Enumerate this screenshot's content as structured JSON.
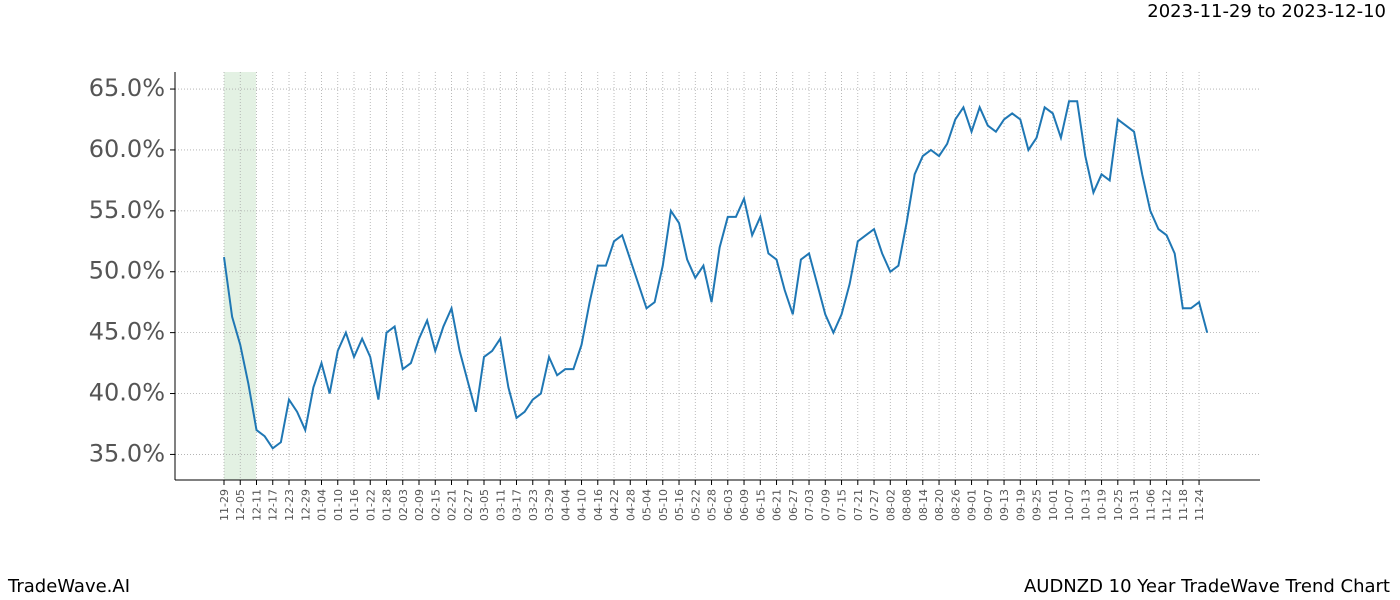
{
  "chart_data": {
    "type": "line",
    "title": "2023-11-29 to 2023-12-10",
    "brand": "TradeWave.AI",
    "caption": "AUDNZD 10 Year TradeWave Trend Chart",
    "categories": [
      "11-29",
      null,
      "12-05",
      null,
      "12-11",
      null,
      "12-17",
      null,
      "12-23",
      null,
      "12-29",
      null,
      "01-04",
      null,
      "01-10",
      null,
      "01-16",
      null,
      "01-22",
      null,
      "01-28",
      null,
      "02-03",
      null,
      "02-09",
      null,
      "02-15",
      null,
      "02-21",
      null,
      "02-27",
      null,
      "03-05",
      null,
      "03-11",
      null,
      "03-17",
      null,
      "03-23",
      null,
      "03-29",
      null,
      "04-04",
      null,
      "04-10",
      null,
      "04-16",
      null,
      "04-22",
      null,
      "04-28",
      null,
      "05-04",
      null,
      "05-10",
      null,
      "05-16",
      null,
      "05-22",
      null,
      "05-28",
      null,
      "06-03",
      null,
      "06-09",
      null,
      "06-15",
      null,
      "06-21",
      null,
      "06-27",
      null,
      "07-03",
      null,
      "07-09",
      null,
      "07-15",
      null,
      "07-21",
      null,
      "07-27",
      null,
      "08-02",
      null,
      "08-08",
      null,
      "08-14",
      null,
      "08-20",
      null,
      "08-26",
      null,
      "09-01",
      null,
      "09-07",
      null,
      "09-13",
      null,
      "09-19",
      null,
      "09-25",
      null,
      "10-01",
      null,
      "10-07",
      null,
      "10-13",
      null,
      "10-19",
      null,
      "10-25",
      null,
      "10-31",
      null,
      "11-06",
      null,
      "11-12",
      null,
      "11-18",
      null,
      "11-24",
      null
    ],
    "series": [
      {
        "color": "#1f77b4",
        "values": [
          51.2,
          46.3,
          44.0,
          40.8,
          37.0,
          36.5,
          35.5,
          36.0,
          39.5,
          38.5,
          37.0,
          40.5,
          42.5,
          40.0,
          43.5,
          45.0,
          43.0,
          44.5,
          43.0,
          39.5,
          45.0,
          45.5,
          42.0,
          42.5,
          44.5,
          46.0,
          43.5,
          45.5,
          47.0,
          43.5,
          41.0,
          38.5,
          43.0,
          43.5,
          44.5,
          40.5,
          38.0,
          38.5,
          39.5,
          40.0,
          43.0,
          41.5,
          42.0,
          42.0,
          44.0,
          47.5,
          50.5,
          50.5,
          52.5,
          53.0,
          51.0,
          49.0,
          47.0,
          47.5,
          50.5,
          55.0,
          54.0,
          51.0,
          49.5,
          50.5,
          47.5,
          52.0,
          54.5,
          54.5,
          56.0,
          53.0,
          54.5,
          51.5,
          51.0,
          48.5,
          46.5,
          51.0,
          51.5,
          49.0,
          46.5,
          45.0,
          46.5,
          49.0,
          52.5,
          53.0,
          53.5,
          51.5,
          50.0,
          50.5,
          54.0,
          58.0,
          59.5,
          60.0,
          59.5,
          60.5,
          62.5,
          63.5,
          61.5,
          63.5,
          62.0,
          61.5,
          62.5,
          63.0,
          62.5,
          60.0,
          61.0,
          63.5,
          63.0,
          61.0,
          64.0,
          64.0,
          59.5,
          56.5,
          58.0,
          57.5,
          62.5,
          62.0,
          61.5,
          58.0,
          55.0,
          53.5,
          53.0,
          51.5,
          47.0,
          47.0,
          47.5,
          45.0
        ]
      }
    ],
    "ylim": [
      32.9,
      66.4
    ],
    "yticks": [
      {
        "value": 35,
        "label": "35.0%"
      },
      {
        "value": 40,
        "label": "40.0%"
      },
      {
        "value": 45,
        "label": "45.0%"
      },
      {
        "value": 50,
        "label": "50.0%"
      },
      {
        "value": 55,
        "label": "55.0%"
      },
      {
        "value": 60,
        "label": "60.0%"
      },
      {
        "value": 65,
        "label": "65.0%"
      }
    ],
    "grid": true
  }
}
